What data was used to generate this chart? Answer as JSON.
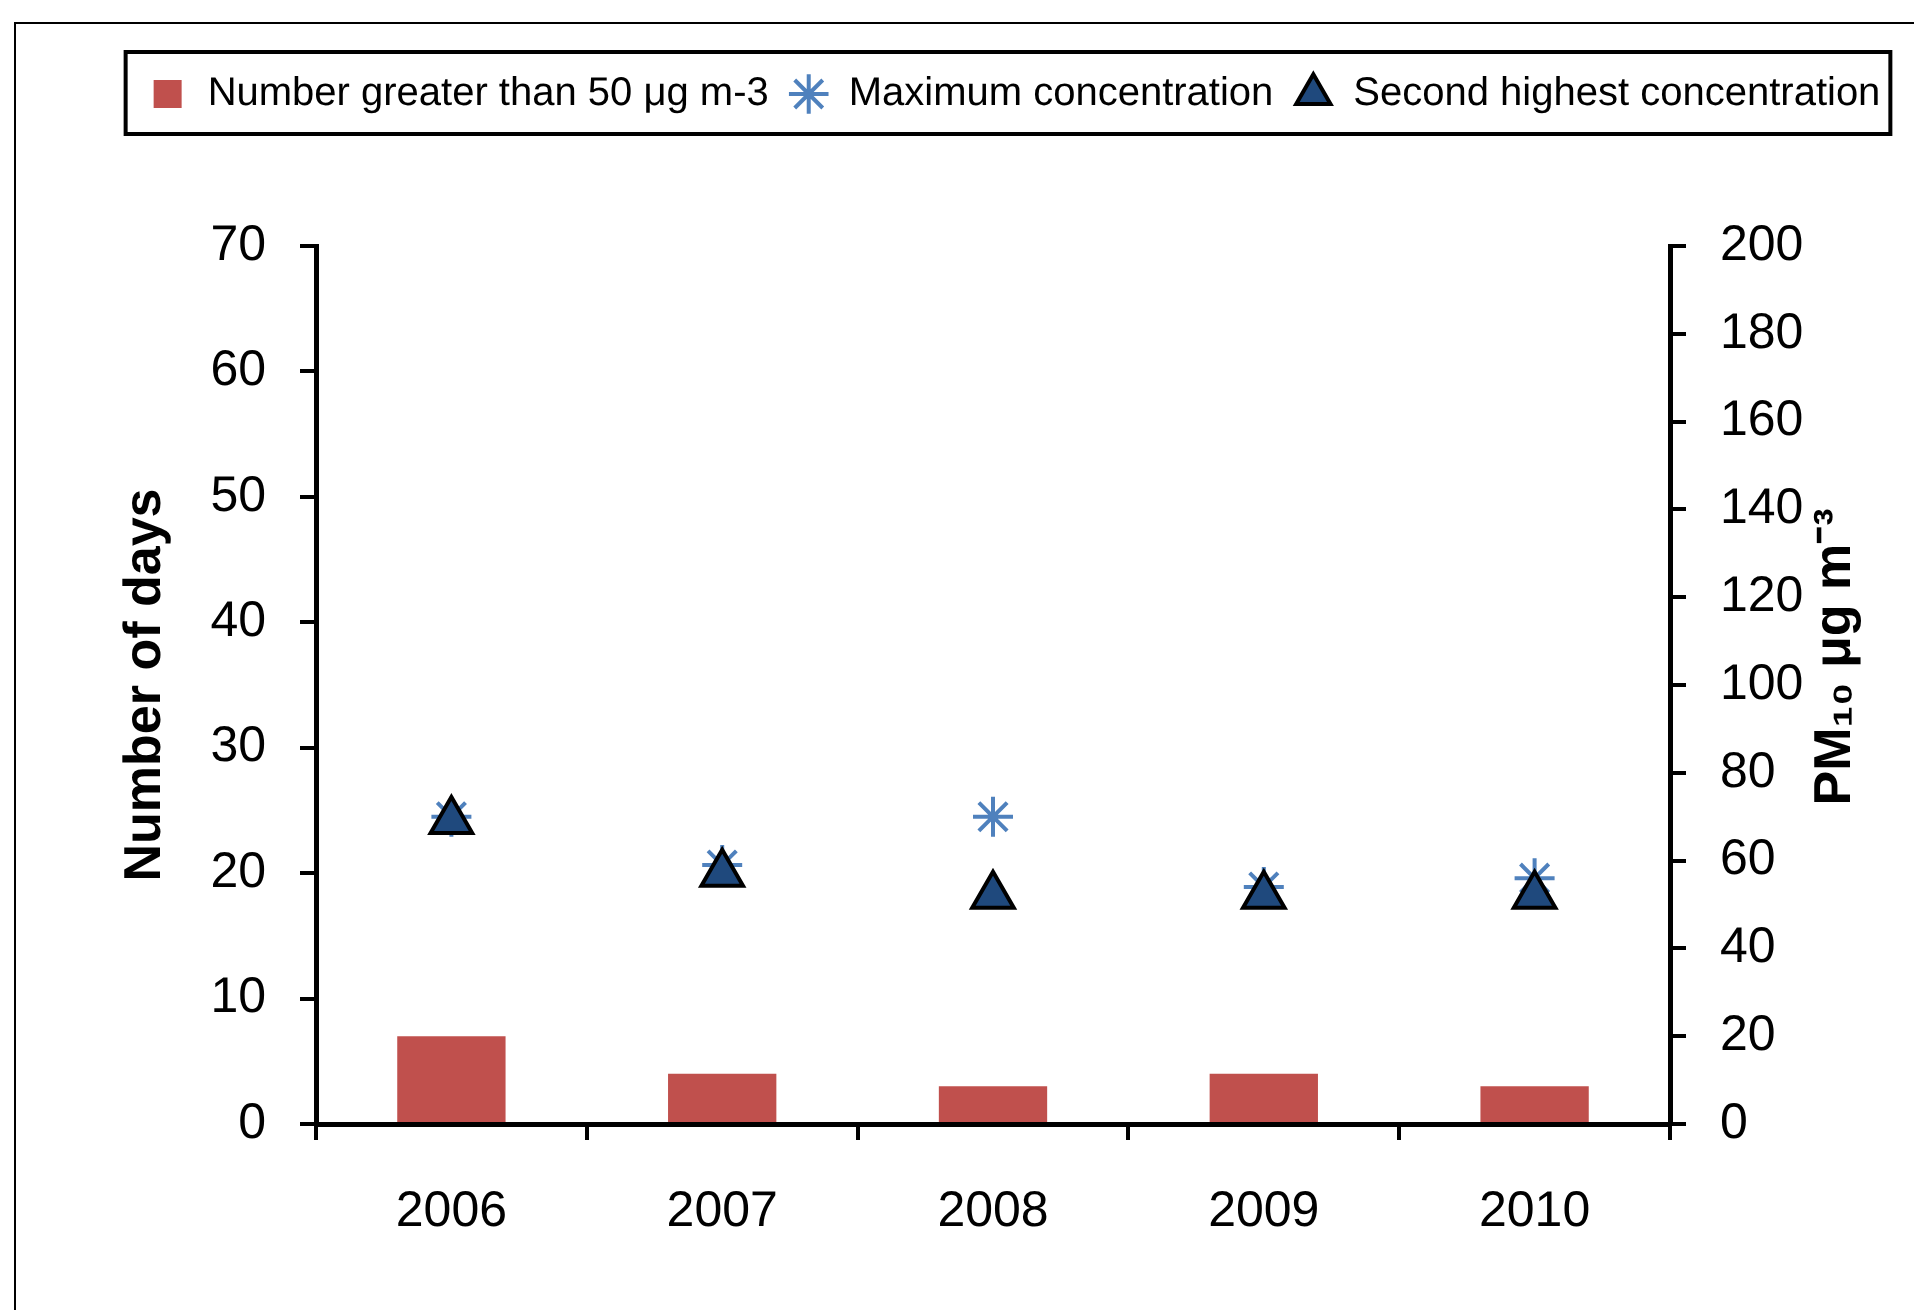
{
  "chart_data": {
    "type": "bar",
    "categories": [
      "2006",
      "2007",
      "2008",
      "2009",
      "2010"
    ],
    "ylabel": "Number of days",
    "y2label": "PM₁₀ μg m⁻³",
    "ylim": [
      0,
      70
    ],
    "yticks": [
      0,
      10,
      20,
      30,
      40,
      50,
      60,
      70
    ],
    "y2lim": [
      0,
      200
    ],
    "y2ticks": [
      0,
      20,
      40,
      60,
      80,
      100,
      120,
      140,
      160,
      180,
      200
    ],
    "series": [
      {
        "name": "Number greater than 50 μg m-3",
        "color": "#c0504d",
        "values": [
          7,
          4,
          3,
          4,
          3
        ]
      },
      {
        "name": "Maximum concentration",
        "type": "scatter",
        "axis": "y2",
        "marker": "cross",
        "color": "#4f81bd",
        "values": [
          70,
          59,
          70,
          54,
          56
        ]
      },
      {
        "name": "Second highest concentration",
        "type": "scatter",
        "axis": "y2",
        "marker": "triangle",
        "color": "#1f497d",
        "values": [
          69,
          57,
          52,
          52,
          52
        ]
      }
    ],
    "legend": "top",
    "grid": false
  }
}
